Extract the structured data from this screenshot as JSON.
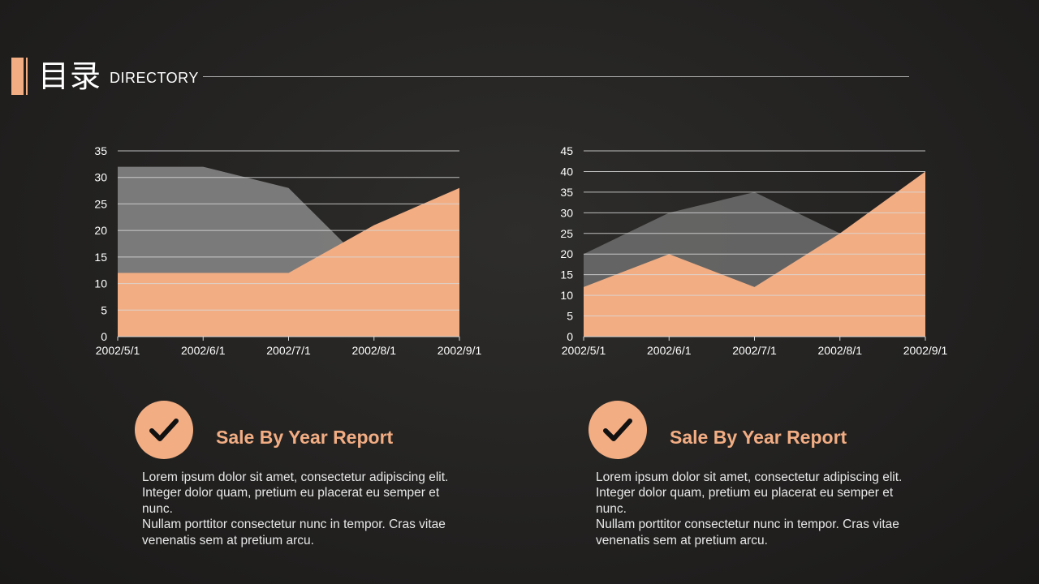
{
  "header": {
    "title_cn": "目录",
    "title_en": "DIRECTORY"
  },
  "colors": {
    "accent": "#f2ad83",
    "series_gray": "#8a8a8a",
    "gridline": "#d9d9d9"
  },
  "chart_data": [
    {
      "type": "area",
      "categories": [
        "2002/5/1",
        "2002/6/1",
        "2002/7/1",
        "2002/8/1",
        "2002/9/1"
      ],
      "series": [
        {
          "values": [
            32,
            32,
            28,
            12,
            12
          ],
          "color": "#8a8a8a"
        },
        {
          "values": [
            12,
            12,
            12,
            21,
            28
          ],
          "color": "#f2ad83"
        }
      ],
      "ylim": [
        0,
        35
      ],
      "yticks": [
        0,
        5,
        10,
        15,
        20,
        25,
        30,
        35
      ],
      "grid": true
    },
    {
      "type": "area",
      "categories": [
        "2002/5/1",
        "2002/6/1",
        "2002/7/1",
        "2002/8/1",
        "2002/9/1"
      ],
      "series": [
        {
          "values": [
            20,
            30,
            35,
            25,
            25
          ],
          "color": "#6e6e6e"
        },
        {
          "values": [
            12,
            20,
            12,
            25,
            40
          ],
          "color": "#f2ad83"
        }
      ],
      "ylim": [
        0,
        45
      ],
      "yticks": [
        0,
        5,
        10,
        15,
        20,
        25,
        30,
        35,
        40,
        45
      ],
      "grid": true
    }
  ],
  "cards": [
    {
      "icon": "check-icon",
      "title": "Sale By Year Report",
      "paragraph1": "Lorem ipsum dolor sit amet, consectetur adipiscing elit. Integer dolor quam, pretium eu placerat eu semper et nunc.",
      "paragraph2": "Nullam porttitor consectetur nunc in tempor. Cras vitae venenatis sem at pretium arcu."
    },
    {
      "icon": "check-icon",
      "title": "Sale By Year Report",
      "paragraph1": "Lorem ipsum dolor sit amet, consectetur adipiscing elit. Integer dolor quam, pretium eu placerat eu semper et nunc.",
      "paragraph2": "Nullam porttitor consectetur nunc in tempor. Cras vitae venenatis sem at pretium arcu."
    }
  ]
}
